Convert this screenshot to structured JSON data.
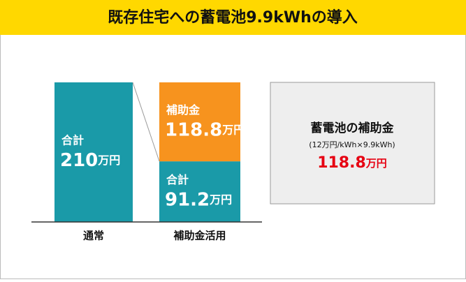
{
  "chart_data": {
    "type": "stacked-bar",
    "title": "既存住宅への蓄電池9.9kWhの導入",
    "categories": [
      "通常",
      "補助金活用"
    ],
    "unit": "万円",
    "series": [
      {
        "name": "合計",
        "color": "#1a9aa8",
        "values": [
          210,
          91.2
        ]
      },
      {
        "name": "補助金",
        "color": "#f7931e",
        "values": [
          null,
          118.8
        ]
      }
    ],
    "ylim": [
      0,
      210
    ],
    "box": {
      "title": "蓄電池の補助金",
      "formula": "(12万円/kWh×9.9kWh)"
    }
  }
}
